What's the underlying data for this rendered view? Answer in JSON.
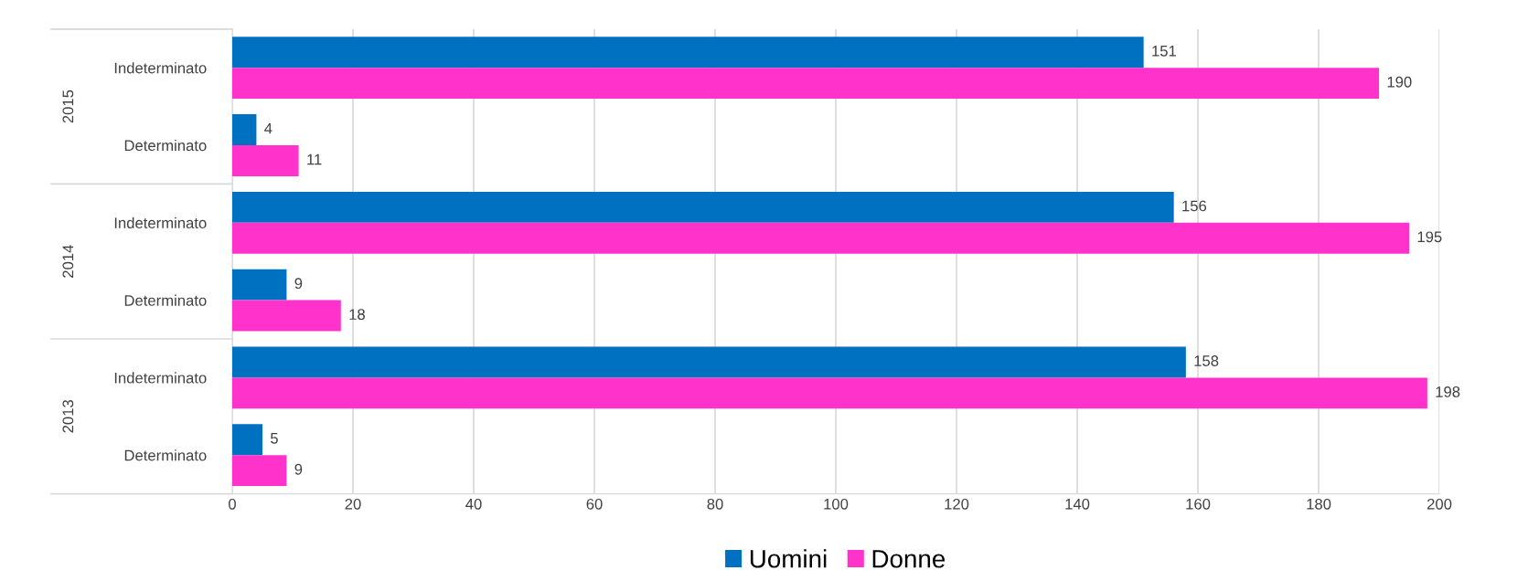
{
  "chart_data": {
    "type": "bar",
    "orientation": "horizontal",
    "categories": [
      "Indeterminato",
      "Determinato",
      "Indeterminato",
      "Determinato",
      "Indeterminato",
      "Determinato"
    ],
    "series": [
      {
        "name": "Uomini",
        "color": "#0070c0",
        "values": [
          151,
          4,
          156,
          9,
          158,
          5
        ]
      },
      {
        "name": "Donne",
        "color": "#ff33cc",
        "values": [
          190,
          11,
          195,
          18,
          198,
          9
        ]
      }
    ],
    "xlim": [
      0,
      200
    ],
    "xticks": [
      0,
      20,
      40,
      60,
      80,
      100,
      120,
      140,
      160,
      180,
      200
    ],
    "grid": "x",
    "legend": "bottom",
    "data_labels": true,
    "annotations": [
      "2015",
      "2014",
      "2013"
    ]
  }
}
